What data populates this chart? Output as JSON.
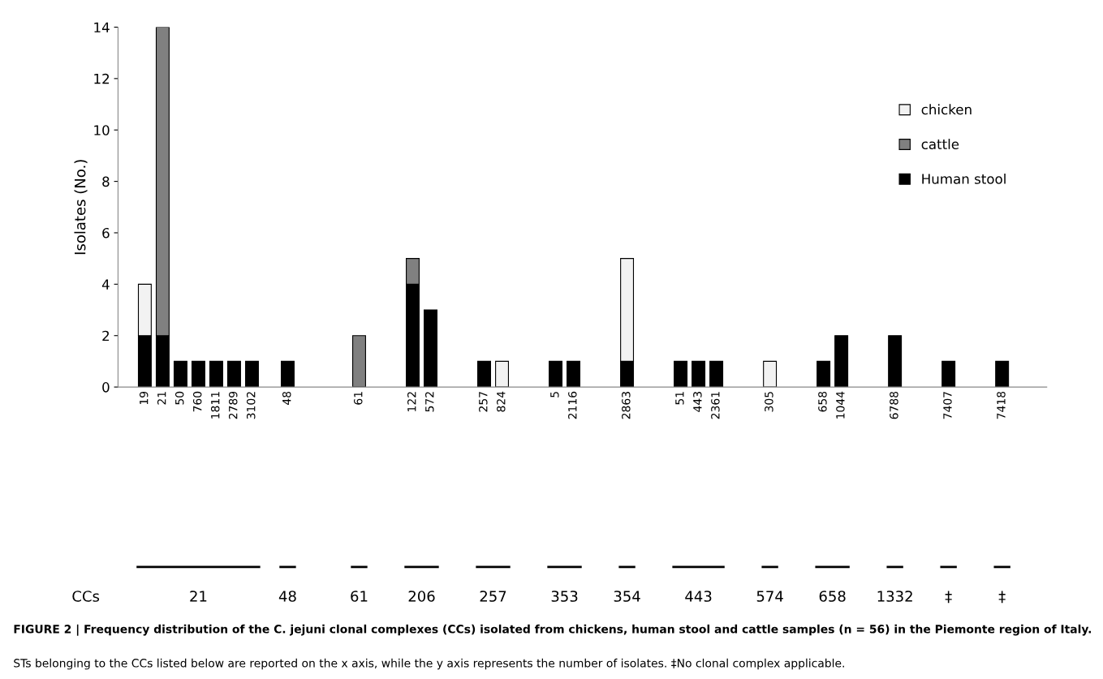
{
  "chart_data": {
    "type": "bar",
    "stacked": true,
    "title": "FIGURE 2 | Frequency distribution of the C. jejuni clonal complexes (CCs) isolated from chickens, human stool and cattle samples (n = 56) in the Piemonte region of Italy.",
    "ylabel": "Isolates (No.)",
    "categories": [
      "19",
      "21",
      "50",
      "760",
      "1811",
      "2789",
      "3102",
      null,
      "48",
      null,
      null,
      null,
      "61",
      null,
      null,
      "122",
      "572",
      null,
      null,
      "257",
      "824",
      null,
      null,
      "5",
      "2116",
      null,
      null,
      "2863",
      null,
      null,
      "51",
      "443",
      "2361",
      null,
      null,
      "305",
      null,
      null,
      "658",
      "1044",
      null,
      null,
      "6788",
      null,
      null,
      "7407",
      null,
      null,
      "7418"
    ],
    "series": [
      {
        "name": "Human stool",
        "color": "#000000",
        "values": [
          2,
          2,
          1,
          1,
          1,
          1,
          1,
          null,
          1,
          null,
          null,
          null,
          0,
          null,
          null,
          4,
          3,
          null,
          null,
          1,
          0,
          null,
          null,
          1,
          1,
          null,
          null,
          1,
          null,
          null,
          1,
          1,
          1,
          null,
          null,
          0,
          null,
          null,
          1,
          2,
          null,
          null,
          2,
          null,
          null,
          1,
          null,
          null,
          1
        ]
      },
      {
        "name": "cattle",
        "color": "#808080",
        "values": [
          0,
          12,
          0,
          0,
          0,
          0,
          0,
          null,
          0,
          null,
          null,
          null,
          2,
          null,
          null,
          1,
          0,
          null,
          null,
          0,
          0,
          null,
          null,
          0,
          0,
          null,
          null,
          0,
          null,
          null,
          0,
          0,
          0,
          null,
          null,
          0,
          null,
          null,
          0,
          0,
          null,
          null,
          0,
          null,
          null,
          0,
          null,
          null,
          0
        ]
      },
      {
        "name": "chicken",
        "color": "#f2f2f2",
        "values": [
          2,
          0,
          0,
          0,
          0,
          0,
          0,
          null,
          0,
          null,
          null,
          null,
          0,
          null,
          null,
          0,
          0,
          null,
          null,
          0,
          1,
          null,
          null,
          0,
          0,
          null,
          null,
          4,
          null,
          null,
          0,
          0,
          0,
          null,
          null,
          1,
          null,
          null,
          0,
          0,
          null,
          null,
          0,
          null,
          null,
          0,
          null,
          null,
          0
        ]
      }
    ],
    "ylim": [
      0,
      14
    ],
    "yticks": [
      0,
      2,
      4,
      6,
      8,
      10,
      12,
      14
    ],
    "grid": false,
    "legend": "top right",
    "annotations": [
      "CCs",
      "21",
      "48",
      "61",
      "206",
      "257",
      "353",
      "354",
      "443",
      "574",
      "658",
      "1332",
      "‡",
      "‡",
      "STs belonging to the CCs listed below are reported on the x axis, while the y axis represents the number of isolates. ‡No clonal complex applicable."
    ]
  }
}
